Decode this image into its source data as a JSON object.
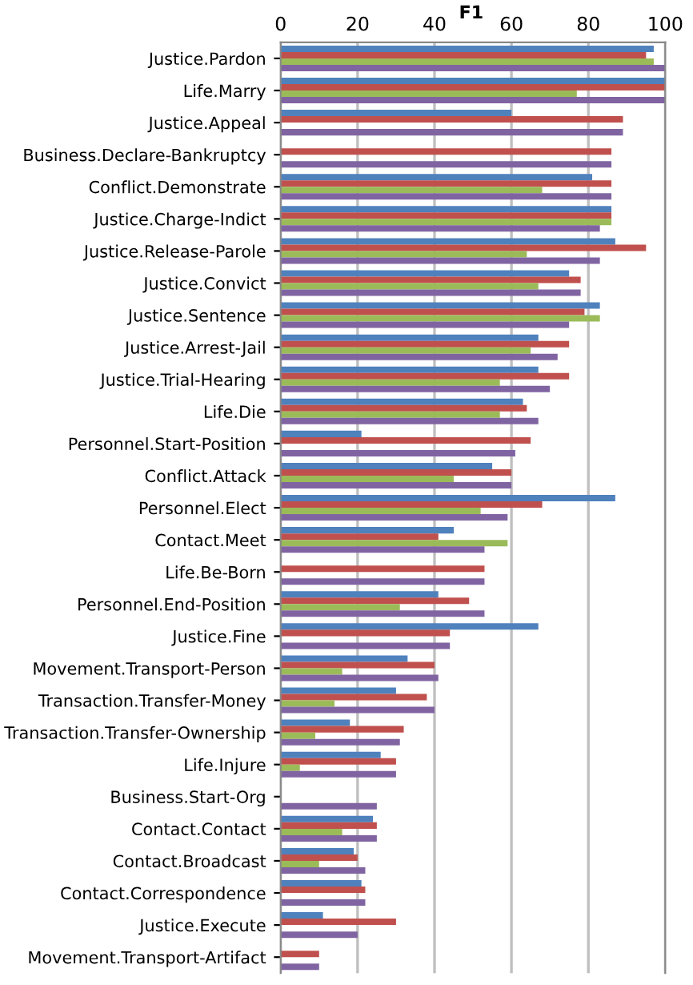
{
  "chart_data": {
    "type": "bar",
    "orientation": "horizontal",
    "title": "F1",
    "categories": [
      "Justice.Pardon",
      "Life.Marry",
      "Justice.Appeal",
      "Business.Declare-Bankruptcy",
      "Conflict.Demonstrate",
      "Justice.Charge-Indict",
      "Justice.Release-Parole",
      "Justice.Convict",
      "Justice.Sentence",
      "Justice.Arrest-Jail",
      "Justice.Trial-Hearing",
      "Life.Die",
      "Personnel.Start-Position",
      "Conflict.Attack",
      "Personnel.Elect",
      "Contact.Meet",
      "Life.Be-Born",
      "Personnel.End-Position",
      "Justice.Fine",
      "Movement.Transport-Person",
      "Transaction.Transfer-Money",
      "Transaction.Transfer-Ownership",
      "Life.Injure",
      "Business.Start-Org",
      "Contact.Contact",
      "Contact.Broadcast",
      "Contact.Correspondence",
      "Justice.Execute",
      "Movement.Transport-Artifact"
    ],
    "series": [
      {
        "color": "#4f81bd",
        "values": [
          97,
          100,
          60,
          null,
          81,
          86,
          87,
          75,
          83,
          67,
          67,
          63,
          21,
          55,
          87,
          45,
          null,
          41,
          67,
          33,
          30,
          18,
          26,
          null,
          24,
          19,
          21,
          11,
          null
        ]
      },
      {
        "color": "#c0504d",
        "values": [
          95,
          100,
          89,
          86,
          86,
          86,
          95,
          78,
          79,
          75,
          75,
          64,
          65,
          60,
          68,
          41,
          53,
          49,
          44,
          40,
          38,
          32,
          30,
          null,
          25,
          20,
          22,
          30,
          10
        ]
      },
      {
        "color": "#9bbb59",
        "values": [
          97,
          77,
          null,
          null,
          68,
          86,
          64,
          67,
          83,
          65,
          57,
          57,
          null,
          45,
          52,
          59,
          null,
          31,
          null,
          16,
          14,
          9,
          5,
          null,
          16,
          10,
          null,
          null,
          null
        ]
      },
      {
        "color": "#8064a2",
        "values": [
          100,
          100,
          89,
          86,
          86,
          83,
          83,
          78,
          75,
          72,
          70,
          67,
          61,
          60,
          59,
          53,
          53,
          53,
          44,
          41,
          40,
          31,
          30,
          25,
          25,
          22,
          22,
          20,
          10
        ]
      }
    ],
    "xlim": [
      0,
      100
    ],
    "xticks": [
      0,
      20,
      40,
      60,
      80,
      100
    ],
    "grid": "x",
    "legend": false
  }
}
